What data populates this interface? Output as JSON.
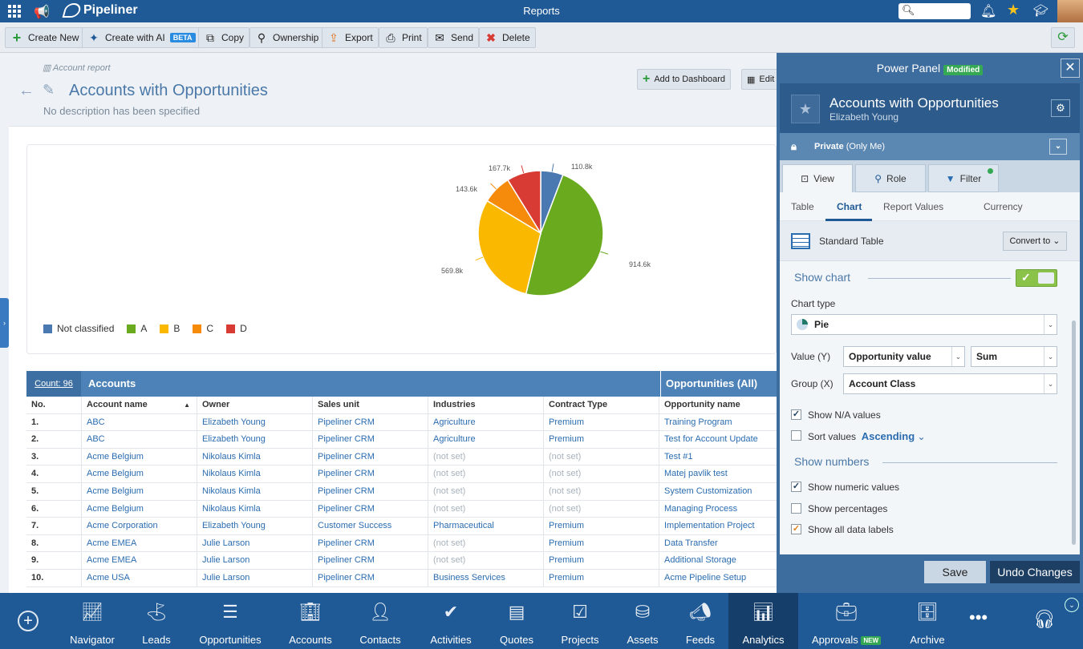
{
  "app": {
    "logo": "Pipeliner",
    "title": "Reports"
  },
  "toolbar": {
    "create_new": "Create New",
    "create_ai": "Create with AI",
    "beta": "BETA",
    "copy": "Copy",
    "ownership": "Ownership",
    "export": "Export",
    "print": "Print",
    "send": "Send",
    "delete": "Delete"
  },
  "header": {
    "crumb": "Account report",
    "title": "Accounts with Opportunities",
    "description": "No description has been specified",
    "add_dashboard": "Add to Dashboard",
    "edit": "Edit"
  },
  "chart_data": {
    "type": "pie",
    "categories": [
      "Not classified",
      "A",
      "B",
      "C",
      "D"
    ],
    "values": [
      110.8,
      914.6,
      569.8,
      143.6,
      167.7
    ],
    "data_labels": [
      "110.8k",
      "914.6k",
      "569.8k",
      "143.6k",
      "167.7k"
    ],
    "colors": [
      "#4a78b0",
      "#6aaa1e",
      "#fbb800",
      "#f58a0b",
      "#d83b34"
    ],
    "legend_position": "bottom-left"
  },
  "table": {
    "count": "Count: 96",
    "group_accounts": "Accounts",
    "group_opps": "Opportunities (All)",
    "columns": [
      "No.",
      "Account name",
      "Owner",
      "Sales unit",
      "Industries",
      "Contract Type",
      "Opportunity name"
    ],
    "rows": [
      [
        "1.",
        "ABC",
        "Elizabeth Young",
        "Pipeliner CRM",
        "Agriculture",
        "Premium",
        "Training Program"
      ],
      [
        "2.",
        "ABC",
        "Elizabeth Young",
        "Pipeliner CRM",
        "Agriculture",
        "Premium",
        "Test for Account Update"
      ],
      [
        "3.",
        "Acme Belgium",
        "Nikolaus Kimla",
        "Pipeliner CRM",
        "(not set)",
        "(not set)",
        "Test #1"
      ],
      [
        "4.",
        "Acme Belgium",
        "Nikolaus Kimla",
        "Pipeliner CRM",
        "(not set)",
        "(not set)",
        "Matej pavlik test"
      ],
      [
        "5.",
        "Acme Belgium",
        "Nikolaus Kimla",
        "Pipeliner CRM",
        "(not set)",
        "(not set)",
        "System Customization"
      ],
      [
        "6.",
        "Acme Belgium",
        "Nikolaus Kimla",
        "Pipeliner CRM",
        "(not set)",
        "(not set)",
        "Managing Process"
      ],
      [
        "7.",
        "Acme Corporation",
        "Elizabeth Young",
        "Customer Success",
        "Pharmaceutical",
        "Premium",
        "Implementation Project"
      ],
      [
        "8.",
        "Acme EMEA",
        "Julie Larson",
        "Pipeliner CRM",
        "(not set)",
        "Premium",
        "Data Transfer"
      ],
      [
        "9.",
        "Acme EMEA",
        "Julie Larson",
        "Pipeliner CRM",
        "(not set)",
        "Premium",
        "Additional Storage"
      ],
      [
        "10.",
        "Acme USA",
        "Julie Larson",
        "Pipeliner CRM",
        "Business Services",
        "Premium",
        "Acme Pipeline Setup"
      ]
    ]
  },
  "panel": {
    "title": "Power Panel",
    "modified": "Modified",
    "report_title": "Accounts with Opportunities",
    "owner": "Elizabeth Young",
    "privacy": "Private",
    "privacy_note": "(Only Me)",
    "tabs": [
      "View",
      "Role",
      "Filter"
    ],
    "subtabs": [
      "Table",
      "Chart",
      "Report Values",
      "Currency"
    ],
    "standard": "Standard Table",
    "convert": "Convert to",
    "show_chart": "Show chart",
    "chart_type_label": "Chart type",
    "chart_type": "Pie",
    "value_label": "Value (Y)",
    "value": "Opportunity value",
    "agg": "Sum",
    "group_label": "Group (X)",
    "group": "Account Class",
    "show_na": "Show N/A values",
    "sort_values": "Sort values",
    "sort_dir": "Ascending",
    "show_numbers": "Show numbers",
    "numeric": "Show numeric values",
    "percentages": "Show percentages",
    "all_labels": "Show all data labels",
    "save": "Save",
    "undo": "Undo Changes"
  },
  "nav": {
    "items": [
      "Navigator",
      "Leads",
      "Opportunities",
      "Accounts",
      "Contacts",
      "Activities",
      "Quotes",
      "Projects",
      "Assets",
      "Feeds",
      "Analytics",
      "Approvals",
      "Archive"
    ],
    "new_badge": "NEW"
  }
}
